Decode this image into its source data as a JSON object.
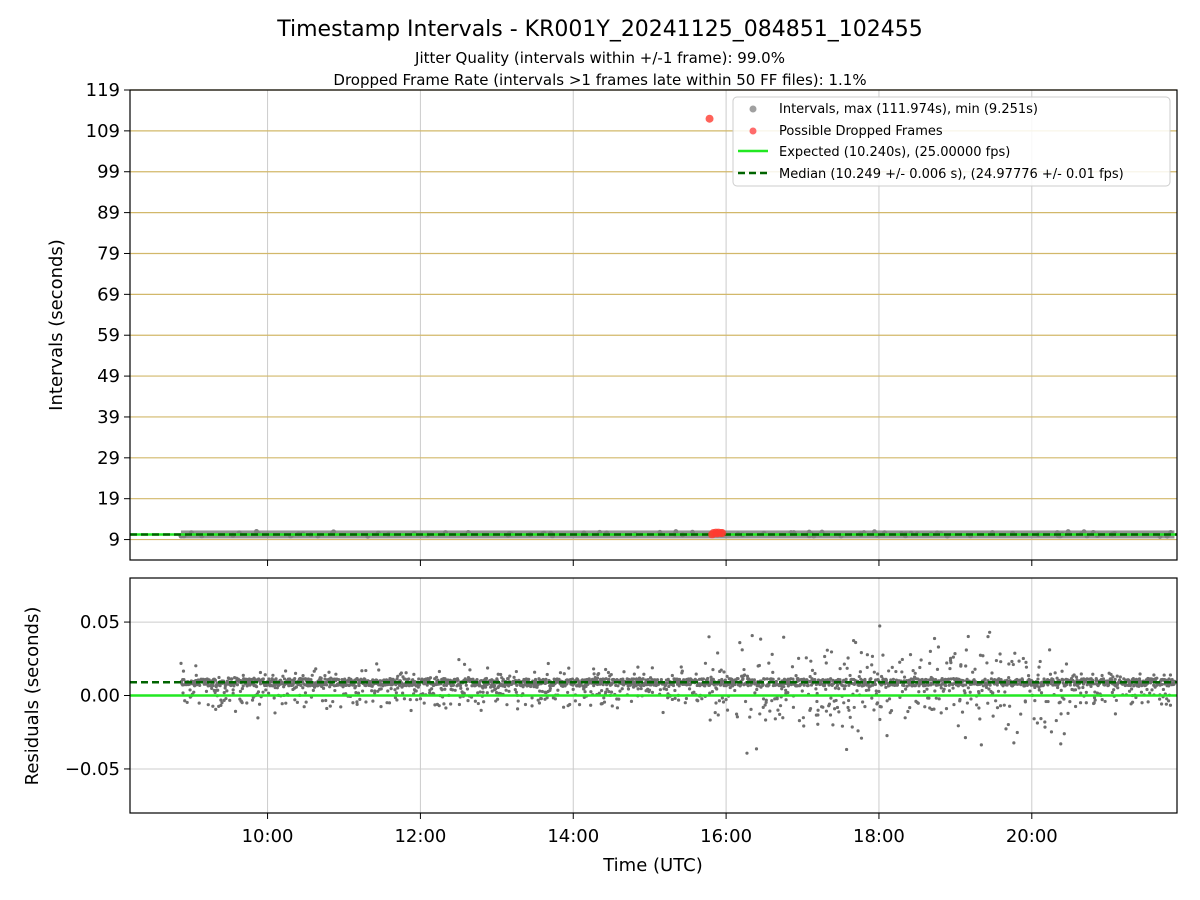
{
  "figure": {
    "title": "Timestamp Intervals - KR001Y_20241125_084851_102455",
    "subtitle_1": "Jitter Quality (intervals within +/-1 frame): 99.0%",
    "subtitle_2": "Dropped Frame Rate (intervals >1 frames late within 50 FF files): 1.1%",
    "xlabel": "Time (UTC)"
  },
  "colors": {
    "intervals": "#808080",
    "dropped": "#ff3b30",
    "expected": "#22e822",
    "median": "#006400",
    "hgrid_top": "#d2b86a",
    "grid": "#cccccc"
  },
  "chart_data": [
    {
      "type": "scatter",
      "ylabel": "Intervals (seconds)",
      "ylim": [
        4,
        119
      ],
      "yticks": [
        9,
        19,
        29,
        39,
        49,
        59,
        69,
        79,
        89,
        99,
        109,
        119
      ],
      "x_range_hours": [
        8.2,
        21.9
      ],
      "xticks": [
        "10:00",
        "12:00",
        "14:00",
        "16:00",
        "18:00",
        "20:00"
      ],
      "legend_position": "upper right",
      "series": [
        {
          "name": "Intervals, max (111.974s), min (9.251s)",
          "kind": "scatter-band",
          "x_start": "08:52",
          "x_end": "21:52",
          "y_center": 10.25
        },
        {
          "name": "Possible Dropped Frames",
          "kind": "scatter",
          "points": [
            [
              "15:47",
              111.974
            ],
            [
              "15:49",
              10.24
            ],
            [
              "15:50",
              10.6
            ],
            [
              "15:52",
              10.7
            ],
            [
              "15:53",
              10.5
            ],
            [
              "15:54",
              10.7
            ],
            [
              "15:56",
              10.6
            ],
            [
              "15:57",
              10.6
            ]
          ]
        },
        {
          "name": "Expected (10.240s), (25.00000 fps)",
          "kind": "hline",
          "y": 10.24
        },
        {
          "name": "Median (10.249 +/- 0.006 s), (24.97776 +/- 0.01 fps)",
          "kind": "hline-dashed",
          "y": 10.249
        }
      ]
    },
    {
      "type": "scatter",
      "ylabel": "Residuals (seconds)",
      "ylim": [
        -0.08,
        0.08
      ],
      "yticks": [
        0.05,
        0.0,
        -0.05
      ],
      "ytick_labels": [
        "0.05",
        "0.00",
        "−0.05"
      ],
      "x_range_hours": [
        8.2,
        21.9
      ],
      "xticks": [
        "10:00",
        "12:00",
        "14:00",
        "16:00",
        "18:00",
        "20:00"
      ],
      "series": [
        {
          "name": "Residuals",
          "kind": "scatter-band",
          "x_start": "08:52",
          "x_end": "21:52",
          "center": 0.009,
          "noise_quiet": 0.005,
          "noise_busy": 0.014,
          "busy_from": "15:40",
          "busy_to": "20:30"
        },
        {
          "name": "Expected",
          "kind": "hline",
          "y": 0.0
        },
        {
          "name": "Median",
          "kind": "hline-dashed",
          "y": 0.009
        }
      ]
    }
  ]
}
